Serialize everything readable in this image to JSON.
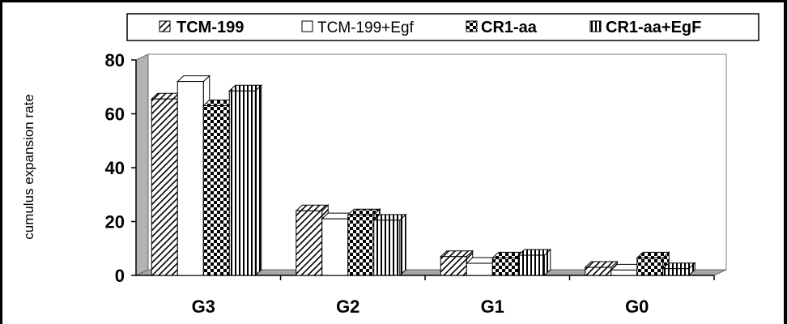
{
  "chart_data": {
    "type": "bar",
    "categories": [
      "G3",
      "G2",
      "G1",
      "G0"
    ],
    "series": [
      {
        "name": "TCM-199",
        "values": [
          65.5,
          24,
          7,
          3
        ]
      },
      {
        "name": "TCM-199+Egf",
        "values": [
          72,
          21,
          4.5,
          2
        ]
      },
      {
        "name": "CR1-aa",
        "values": [
          63,
          22.5,
          6.5,
          6.5
        ]
      },
      {
        "name": "CR1-aa+EgF",
        "values": [
          68.5,
          20.5,
          7.5,
          2.5
        ]
      }
    ],
    "ylabel": "cumulus expansion rate",
    "ylim": [
      0,
      80
    ],
    "yticks": [
      0,
      20,
      40,
      60,
      80
    ],
    "legend_position": "top",
    "patterns": [
      "diagonal-hatch",
      "white",
      "checker",
      "vertical-stripes"
    ],
    "colors": {
      "bars": "#ffffff",
      "ink": "#000000",
      "wall": "#b3b3b3"
    }
  }
}
